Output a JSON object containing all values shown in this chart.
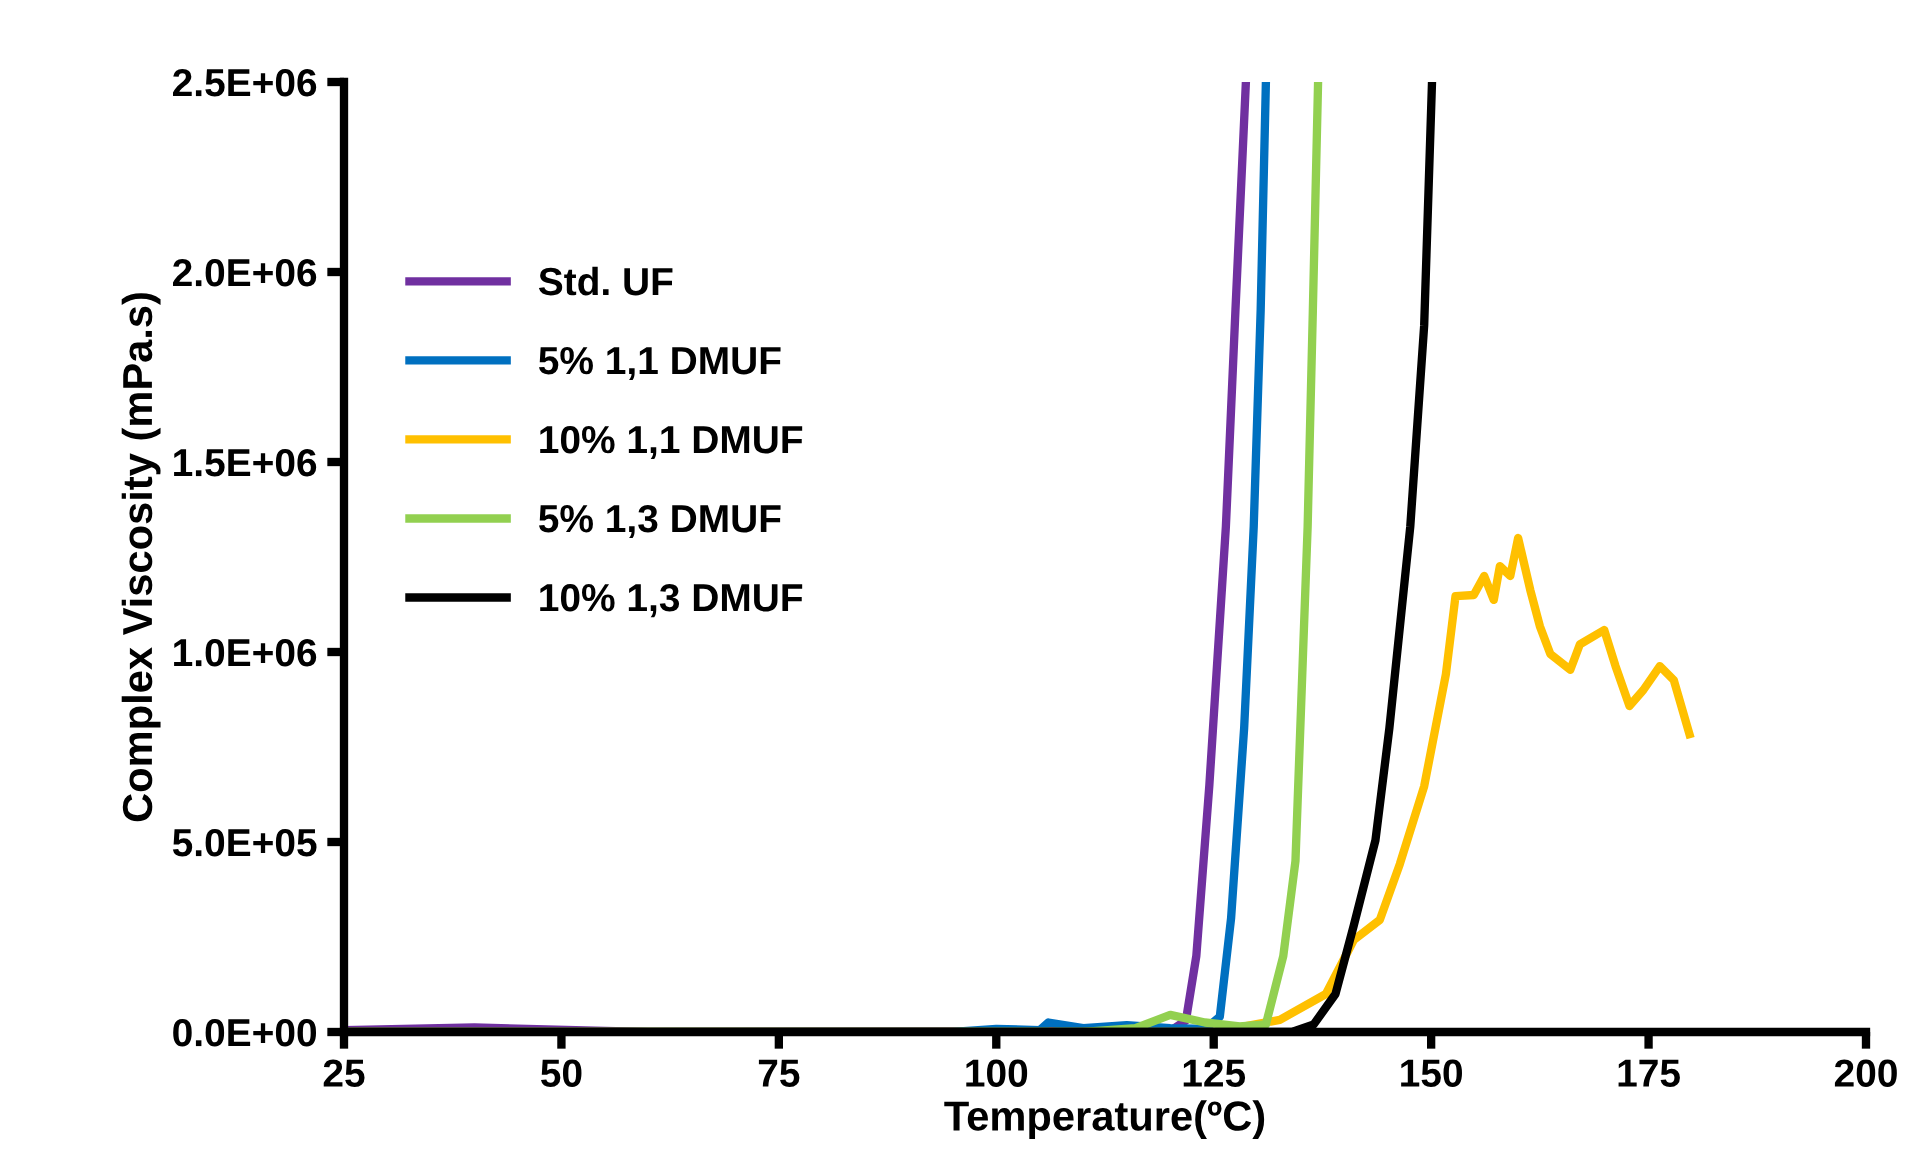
{
  "chart_data": {
    "type": "line",
    "xlabel": "Temperature(ºC)",
    "ylabel": "Complex Viscosity (mPa.s)",
    "xlim": [
      25,
      200
    ],
    "xticks": [
      25,
      50,
      75,
      100,
      125,
      150,
      175,
      200
    ],
    "ylim": [
      0,
      2500000
    ],
    "yticks": [
      {
        "value": 0,
        "label": "0.0E+00"
      },
      {
        "value": 500000,
        "label": "5.0E+05"
      },
      {
        "value": 1000000,
        "label": "1.0E+06"
      },
      {
        "value": 1500000,
        "label": "1.5E+06"
      },
      {
        "value": 2000000,
        "label": "2.0E+06"
      },
      {
        "value": 2500000,
        "label": "2.5E+06"
      }
    ],
    "grid": false,
    "legend": "left",
    "marker": "none",
    "line_style": "solid",
    "series": [
      {
        "name": "Std. UF",
        "color": "#7030a0",
        "x": [
          25,
          40,
          55,
          60,
          120,
          121.8,
          123,
          124.5,
          126.4,
          127.5,
          128.7
        ],
        "values": [
          5000,
          12000,
          3000,
          0,
          3000,
          30000,
          200000,
          650000,
          1330000,
          1900000,
          2500000
        ]
      },
      {
        "name": "5% 1,1 DMUF",
        "color": "#0070c0",
        "x": [
          25,
          95,
          100,
          105,
          106,
          110,
          115,
          120,
          124,
          125.7,
          127,
          128.5,
          129.6,
          130.4,
          131.0
        ],
        "values": [
          0,
          0,
          8000,
          5000,
          25000,
          10000,
          18000,
          10000,
          8000,
          40000,
          300000,
          800000,
          1330000,
          1900000,
          2500000
        ]
      },
      {
        "name": "10% 1,1 DMUF",
        "color": "#ffc000",
        "x": [
          25,
          125,
          132.6,
          137.9,
          141.1,
          144.1,
          146.4,
          149.2,
          151.7,
          152.8,
          154.9,
          156.1,
          157.2,
          157.9,
          159.1,
          160.0,
          161.4,
          162.5,
          163.7,
          166,
          167.1,
          169.9,
          171.2,
          172.8,
          174.4,
          176.3,
          177.9,
          179.7
        ],
        "values": [
          0,
          0,
          32000,
          100000,
          242000,
          295000,
          442000,
          647000,
          942000,
          1147000,
          1150000,
          1200000,
          1137000,
          1226000,
          1200000,
          1300000,
          1163000,
          1068000,
          995000,
          953000,
          1020000,
          1058000,
          963000,
          858000,
          900000,
          963000,
          926000,
          784000
        ]
      },
      {
        "name": "5% 1,3 DMUF",
        "color": "#92d050",
        "x": [
          25,
          110,
          116,
          120,
          124,
          128,
          131,
          133,
          134.4,
          135.8,
          136.4,
          137
        ],
        "values": [
          0,
          0,
          10000,
          45000,
          25000,
          15000,
          20000,
          200000,
          450000,
          1330000,
          1900000,
          2500000
        ]
      },
      {
        "name": "10% 1,3 DMUF",
        "color": "#000000",
        "x": [
          25,
          134,
          136.5,
          139,
          141.1,
          143.6,
          145.2,
          147.6,
          149.2,
          150.1
        ],
        "values": [
          0,
          0,
          20000,
          100000,
          280000,
          505000,
          800000,
          1330000,
          1860000,
          2500000
        ]
      }
    ]
  }
}
